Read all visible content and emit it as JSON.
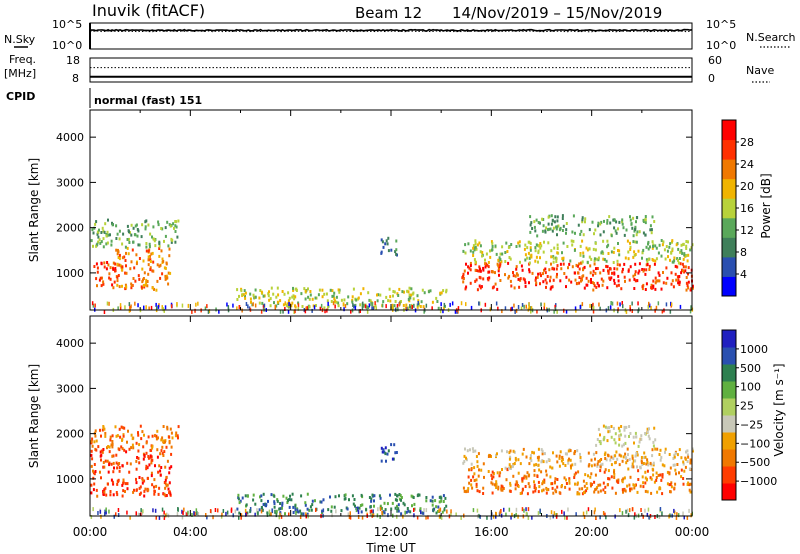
{
  "header": {
    "station": "Inuvik (fitACF)",
    "beam": "Beam 12",
    "date_range": "14/Nov/2019 – 15/Nov/2019"
  },
  "colors": {
    "power_scale": [
      "#0000ff",
      "#2a4fb0",
      "#3f7f5a",
      "#5aa85a",
      "#b8d23a",
      "#f0b400",
      "#f07800",
      "#ff3000",
      "#ff0000"
    ],
    "velocity_scale": [
      "#ff0000",
      "#ff3c00",
      "#f07800",
      "#f0a000",
      "#c8c8b8",
      "#b0d060",
      "#60b040",
      "#2e8050",
      "#2a50b0",
      "#2020c0"
    ],
    "nsky": "#000000",
    "freq": "#000000"
  },
  "chart_data": [
    {
      "type": "line",
      "panel": "noise",
      "series": [
        {
          "name": "N.Sky"
        },
        {
          "name": "N.Search"
        }
      ],
      "left_label": "N.Sky",
      "right_label": "N.Search",
      "left_ticks": [
        "10^5",
        "10^0"
      ],
      "right_ticks": [
        "10^5",
        "10^0"
      ],
      "nsky_level_log": 3.6,
      "nsearch_level_log": 3.4
    },
    {
      "type": "line",
      "panel": "frequency",
      "left_label_1": "Freq.",
      "left_label_2": "[MHz]",
      "right_label": "Nave",
      "left_ticks": [
        "18",
        "8"
      ],
      "right_ticks": [
        "60",
        "0"
      ],
      "freq_mhz": 10.2,
      "nave": 36
    },
    {
      "type": "table",
      "panel": "cpid",
      "label": "CPID",
      "value": "normal (fast) 151"
    },
    {
      "type": "heatmap",
      "panel": "power",
      "ylabel": "Slant Range [km]",
      "yticks": [
        "1000",
        "2000",
        "3000",
        "4000"
      ],
      "ylim": [
        180,
        4600
      ],
      "xlim_hours": [
        0,
        24
      ],
      "colorbar_label": "Power [dB]",
      "colorbar_ticks": [
        "4",
        "8",
        "12",
        "16",
        "20",
        "24",
        "28"
      ],
      "colorbar_range": [
        0,
        32
      ],
      "regions": [
        {
          "t0": 0.0,
          "t1": 1.0,
          "r0": 700,
          "r1": 1300,
          "level": 27
        },
        {
          "t0": 1.0,
          "t1": 3.2,
          "r0": 650,
          "r1": 1600,
          "level": 24
        },
        {
          "t0": 0.0,
          "t1": 3.5,
          "r0": 1600,
          "r1": 2200,
          "level": 12
        },
        {
          "t0": 5.8,
          "t1": 14.2,
          "r0": 250,
          "r1": 700,
          "level": 16
        },
        {
          "t0": 14.8,
          "t1": 24.0,
          "r0": 650,
          "r1": 1250,
          "level": 27
        },
        {
          "t0": 14.8,
          "t1": 24.0,
          "r0": 1250,
          "r1": 1750,
          "level": 15
        },
        {
          "t0": 17.5,
          "t1": 22.5,
          "r0": 1850,
          "r1": 2300,
          "level": 10
        },
        {
          "t0": 11.5,
          "t1": 12.2,
          "r0": 1400,
          "r1": 1800,
          "level": 9
        }
      ]
    },
    {
      "type": "heatmap",
      "panel": "velocity",
      "ylabel": "Slant Range [km]",
      "yticks": [
        "1000",
        "2000",
        "3000",
        "4000"
      ],
      "ylim": [
        180,
        4600
      ],
      "xlabel": "Time UT",
      "xticks": [
        "00:00",
        "04:00",
        "08:00",
        "12:00",
        "16:00",
        "20:00",
        "00:00"
      ],
      "xlim_hours": [
        0,
        24
      ],
      "colorbar_label": "Velocity [m s⁻¹]",
      "colorbar_ticks": [
        "1000",
        "500",
        "100",
        "25",
        "−25",
        "−100",
        "−500",
        "−1000"
      ],
      "regions": [
        {
          "t0": 0.0,
          "t1": 3.2,
          "r0": 650,
          "r1": 1700,
          "level": 1
        },
        {
          "t0": 0.0,
          "t1": 3.5,
          "r0": 1700,
          "r1": 2200,
          "level": 2
        },
        {
          "t0": 5.8,
          "t1": 14.2,
          "r0": 250,
          "r1": 700,
          "level": 7
        },
        {
          "t0": 14.8,
          "t1": 24.0,
          "r0": 700,
          "r1": 1250,
          "level": 2
        },
        {
          "t0": 14.8,
          "t1": 24.0,
          "r0": 1250,
          "r1": 1700,
          "level": 3
        },
        {
          "t0": 20.0,
          "t1": 22.5,
          "r0": 1750,
          "r1": 2200,
          "level": 4
        },
        {
          "t0": 11.5,
          "t1": 12.2,
          "r0": 1400,
          "r1": 1800,
          "level": 8
        }
      ]
    }
  ]
}
